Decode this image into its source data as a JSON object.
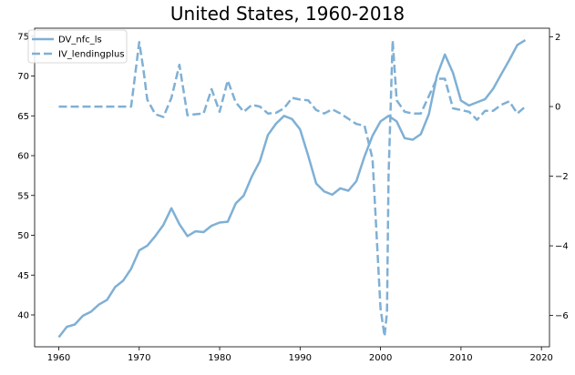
{
  "chart_data": {
    "type": "line",
    "title": "United States, 1960-2018",
    "xlabel": "",
    "ylabel_left": "",
    "ylabel_right": "",
    "xlim": [
      1957,
      2021
    ],
    "ylim_left": [
      36,
      76
    ],
    "ylim_right": [
      -6.9,
      2.25
    ],
    "x_ticks": [
      1960,
      1970,
      1980,
      1990,
      2000,
      2010,
      2020
    ],
    "y_left_ticks": [
      40,
      45,
      50,
      55,
      60,
      65,
      70,
      75
    ],
    "y_right_ticks": [
      -6,
      -4,
      -2,
      0,
      2
    ],
    "grid": false,
    "legend_position": "upper-left",
    "color": "#7fb0d5",
    "series": [
      {
        "name": "DV_nfc_ls",
        "axis": "left",
        "style": "solid",
        "x": [
          1960,
          1961,
          1962,
          1963,
          1964,
          1965,
          1966,
          1967,
          1968,
          1969,
          1970,
          1971,
          1972,
          1973,
          1974,
          1975,
          1976,
          1977,
          1978,
          1979,
          1980,
          1981,
          1982,
          1983,
          1984,
          1985,
          1986,
          1987,
          1988,
          1989,
          1990,
          1991,
          1992,
          1993,
          1994,
          1995,
          1996,
          1997,
          1998,
          1999,
          2000,
          2001,
          2002,
          2003,
          2004,
          2005,
          2006,
          2007,
          2008,
          2009,
          2010,
          2011,
          2012,
          2013,
          2014,
          2015,
          2016,
          2017,
          2018
        ],
        "values": [
          37.2,
          38.5,
          38.8,
          39.9,
          40.4,
          41.3,
          41.9,
          43.5,
          44.3,
          45.8,
          48.1,
          48.7,
          49.9,
          51.3,
          53.4,
          51.4,
          49.9,
          50.5,
          50.4,
          51.2,
          51.6,
          51.7,
          54.0,
          55.0,
          57.4,
          59.3,
          62.6,
          64.0,
          65.0,
          64.6,
          63.3,
          60.0,
          56.5,
          55.5,
          55.1,
          55.9,
          55.6,
          56.8,
          59.9,
          62.5,
          64.3,
          65.0,
          64.3,
          62.2,
          62.0,
          62.7,
          65.2,
          70.0,
          72.7,
          70.4,
          66.9,
          66.3,
          66.7,
          67.1,
          68.4,
          70.2,
          72.0,
          73.9,
          74.5
        ]
      },
      {
        "name": "IV_lendingplus",
        "axis": "right",
        "style": "dashed",
        "x": [
          1960,
          1961,
          1962,
          1963,
          1964,
          1965,
          1966,
          1967,
          1968,
          1969,
          1970,
          1970.5,
          1971,
          1972,
          1973,
          1974,
          1975,
          1976,
          1977,
          1978,
          1979,
          1980,
          1981,
          1982,
          1983,
          1984,
          1985,
          1986,
          1987,
          1988,
          1989,
          1990,
          1991,
          1992,
          1993,
          1994,
          1995,
          1996,
          1997,
          1998,
          1999,
          2000,
          2000.5,
          2000.8,
          2001,
          2001.5,
          2002,
          2003,
          2004,
          2005,
          2006,
          2007,
          2008,
          2009,
          2010,
          2011,
          2012,
          2013,
          2014,
          2015,
          2016,
          2017,
          2018
        ],
        "values": [
          0.0,
          0.0,
          0.0,
          0.0,
          0.0,
          0.0,
          0.0,
          0.0,
          0.0,
          0.0,
          1.85,
          1.1,
          0.2,
          -0.22,
          -0.3,
          0.25,
          1.2,
          -0.25,
          -0.22,
          -0.2,
          0.5,
          -0.15,
          0.75,
          0.12,
          -0.15,
          0.05,
          0.0,
          -0.2,
          -0.18,
          -0.05,
          0.25,
          0.2,
          0.18,
          -0.1,
          -0.2,
          -0.08,
          -0.2,
          -0.35,
          -0.5,
          -0.55,
          -1.5,
          -5.8,
          -6.6,
          -5.9,
          -2.0,
          1.9,
          0.18,
          -0.15,
          -0.2,
          -0.2,
          0.3,
          0.8,
          0.8,
          -0.05,
          -0.1,
          -0.15,
          -0.38,
          -0.12,
          -0.12,
          0.05,
          0.15,
          -0.2,
          0.0
        ]
      }
    ]
  }
}
